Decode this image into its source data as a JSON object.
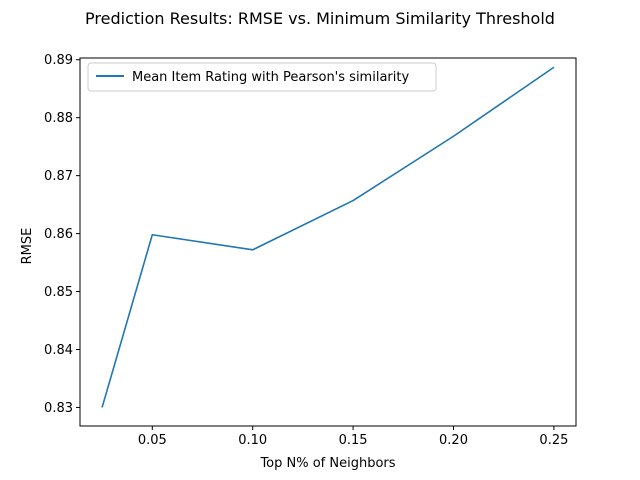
{
  "chart_data": {
    "type": "line",
    "title": "Prediction Results: RMSE vs. Minimum Similarity Threshold",
    "xlabel": "Top N% of Neighbors",
    "ylabel": "RMSE",
    "xlim": [
      0.014,
      0.261
    ],
    "ylim": [
      0.8268,
      0.8903
    ],
    "xticks": [
      {
        "value": 0.05,
        "label": "0.05"
      },
      {
        "value": 0.1,
        "label": "0.10"
      },
      {
        "value": 0.15,
        "label": "0.15"
      },
      {
        "value": 0.2,
        "label": "0.20"
      },
      {
        "value": 0.25,
        "label": "0.25"
      }
    ],
    "yticks": [
      {
        "value": 0.83,
        "label": "0.83"
      },
      {
        "value": 0.84,
        "label": "0.84"
      },
      {
        "value": 0.85,
        "label": "0.85"
      },
      {
        "value": 0.86,
        "label": "0.86"
      },
      {
        "value": 0.87,
        "label": "0.87"
      },
      {
        "value": 0.88,
        "label": "0.88"
      },
      {
        "value": 0.89,
        "label": "0.89"
      }
    ],
    "grid": false,
    "legend_position": "top-left",
    "series": [
      {
        "name": "Mean Item Rating with Pearson's similarity",
        "color": "#1f77b4",
        "x": [
          0.025,
          0.05,
          0.1,
          0.15,
          0.2,
          0.25
        ],
        "y": [
          0.83,
          0.8598,
          0.8572,
          0.8657,
          0.8768,
          0.8887
        ]
      }
    ]
  }
}
